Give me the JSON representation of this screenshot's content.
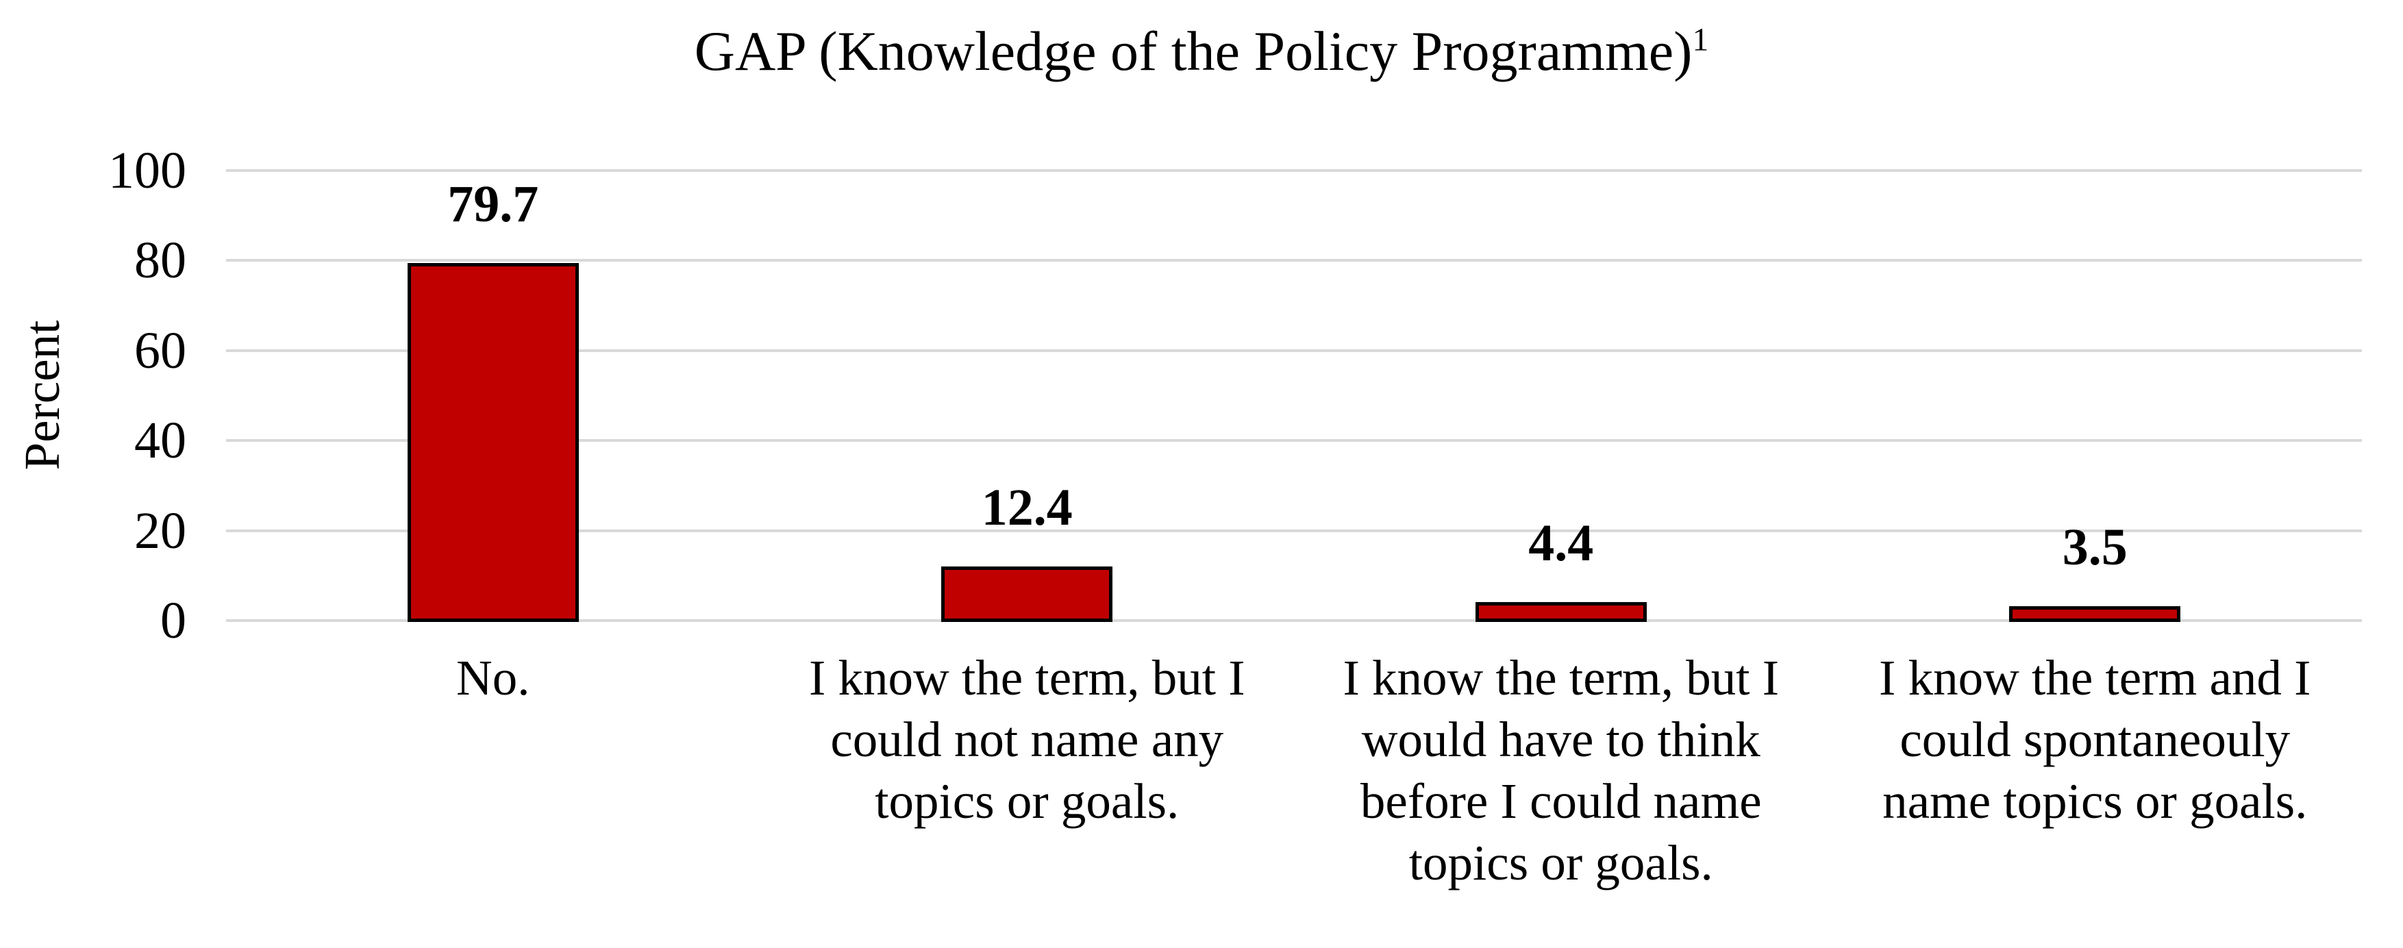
{
  "chart_data": {
    "type": "bar",
    "title": "GAP (Knowledge of the Policy Programme)",
    "title_superscript": "1",
    "ylabel": "Percent",
    "xlabel": "",
    "categories": [
      "No.",
      "I know the term, but I\ncould not name any\ntopics or goals.",
      "I know the term, but I\nwould have to think\nbefore I could name\ntopics or goals.",
      "I know the term and I\ncould spontaneouly\nname topics or goals."
    ],
    "values": [
      79.7,
      12.4,
      4.4,
      3.5
    ],
    "value_labels": [
      "79.7",
      "12.4",
      "4.4",
      "3.5"
    ],
    "yticks": [
      0,
      20,
      40,
      60,
      80,
      100
    ],
    "ylim": [
      0,
      100
    ],
    "grid": "horizontal-gridlines",
    "legend": "none",
    "colors": {
      "bar_fill": "#C00000",
      "bar_border": "#000000",
      "gridline": "#D9D9D9",
      "text": "#000000",
      "background": "#FFFFFF"
    }
  }
}
